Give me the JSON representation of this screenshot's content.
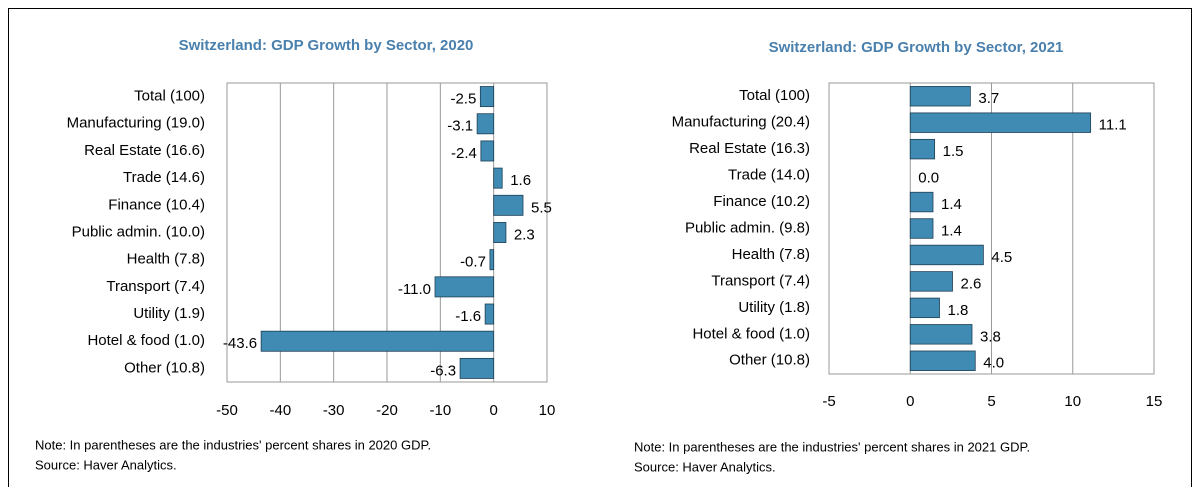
{
  "chart_data": [
    {
      "type": "bar",
      "orientation": "horizontal",
      "title": "Switzerland: GDP Growth by Sector, 2020",
      "categories": [
        "Total (100)",
        "Manufacturing (19.0)",
        "Real Estate (16.6)",
        "Trade (14.6)",
        "Finance (10.4)",
        "Public admin. (10.0)",
        "Health (7.8)",
        "Transport (7.4)",
        "Utility (1.9)",
        "Hotel & food (1.0)",
        "Other (10.8)"
      ],
      "values": [
        -2.5,
        -3.1,
        -2.4,
        1.6,
        5.5,
        2.3,
        -0.7,
        -11,
        -1.6,
        -43.6,
        -6.3
      ],
      "value_labels": [
        "-2.5",
        "-3.1",
        "-2.4",
        "1.6",
        "5.5",
        "2.3",
        "-0.7",
        "-11.0",
        "-1.6",
        "-43.6",
        "-6.3"
      ],
      "color": "#3f8bb3",
      "xlim": [
        -50,
        10
      ],
      "xticks": [
        -50,
        -40,
        -30,
        -20,
        -10,
        0,
        10
      ],
      "grid": true,
      "note": "Note: In parentheses are the industries' percent shares in 2020 GDP.",
      "source": "Source: Haver Analytics."
    },
    {
      "type": "bar",
      "orientation": "horizontal",
      "title": "Switzerland: GDP Growth by Sector, 2021",
      "categories": [
        "Total (100)",
        "Manufacturing (20.4)",
        "Real Estate (16.3)",
        "Trade (14.0)",
        "Finance (10.2)",
        "Public admin. (9.8)",
        "Health (7.8)",
        "Transport (7.4)",
        "Utility (1.8)",
        "Hotel & food (1.0)",
        "Other (10.8)"
      ],
      "values": [
        3.7,
        11.1,
        1.5,
        0,
        1.4,
        1.4,
        4.5,
        2.6,
        1.8,
        3.8,
        4
      ],
      "value_labels": [
        "3.7",
        "11.1",
        "1.5",
        "0.0",
        "1.4",
        "1.4",
        "4.5",
        "2.6",
        "1.8",
        "3.8",
        "4.0"
      ],
      "color": "#3f8bb3",
      "xlim": [
        -5,
        15
      ],
      "xticks": [
        -5,
        0,
        5,
        10,
        15
      ],
      "grid": true,
      "note": "Note: In parentheses are the industries' percent shares in 2021 GDP.",
      "source": "Source: Haver Analytics."
    }
  ]
}
